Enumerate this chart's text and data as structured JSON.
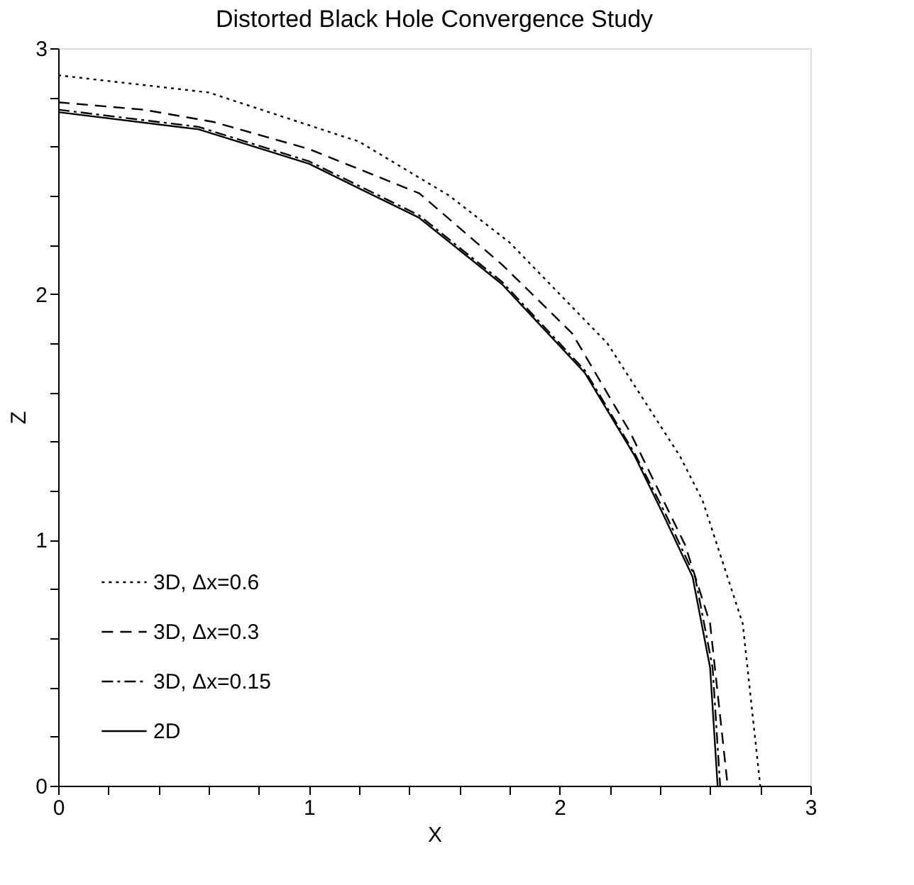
{
  "chart_data": {
    "type": "line",
    "title": "Distorted Black Hole Convergence Study",
    "xlabel": "X",
    "ylabel": "Z",
    "xlim": [
      0,
      3
    ],
    "ylim": [
      0,
      3
    ],
    "xticks": [
      0,
      {
        "value": 0.2,
        "label": null
      },
      {
        "value": 0.4,
        "label": null
      },
      {
        "value": 0.6,
        "label": null
      },
      {
        "value": 0.8,
        "label": null
      },
      1,
      {
        "value": 1.2,
        "label": null
      },
      {
        "value": 1.4,
        "label": null
      },
      {
        "value": 1.6,
        "label": null
      },
      {
        "value": 1.8,
        "label": null
      },
      2,
      {
        "value": 2.2,
        "label": null
      },
      {
        "value": 2.4,
        "label": null
      },
      {
        "value": 2.6,
        "label": null
      },
      {
        "value": 2.8,
        "label": null
      },
      3
    ],
    "yticks": [
      0,
      {
        "value": 0.2,
        "label": null
      },
      {
        "value": 0.4,
        "label": null
      },
      {
        "value": 0.6,
        "label": null
      },
      {
        "value": 0.8,
        "label": null
      },
      1,
      {
        "value": 1.2,
        "label": null
      },
      {
        "value": 1.4,
        "label": null
      },
      {
        "value": 1.6,
        "label": null
      },
      {
        "value": 1.8,
        "label": null
      },
      2,
      {
        "value": 2.2,
        "label": null
      },
      {
        "value": 2.4,
        "label": null
      },
      {
        "value": 2.6,
        "label": null
      },
      {
        "value": 2.8,
        "label": null
      },
      3
    ],
    "grid": false,
    "legend": "bottom left",
    "marker": "none",
    "series": [
      {
        "name": "3D, Δx=0.6",
        "color": "#000000",
        "line_style": "dotted",
        "x": [
          0,
          0.6,
          1.2,
          1.56,
          1.8,
          2.19,
          2.48,
          2.57,
          2.73,
          2.8
        ],
        "values": [
          2.89,
          2.82,
          2.62,
          2.4,
          2.21,
          1.8,
          1.34,
          1.16,
          0.66,
          0
        ]
      },
      {
        "name": "3D, Δx=0.3",
        "color": "#000000",
        "line_style": "dashed",
        "x": [
          0,
          0.34,
          0.62,
          1.0,
          1.44,
          1.77,
          2.05,
          2.28,
          2.5,
          2.6,
          2.67
        ],
        "values": [
          2.78,
          2.75,
          2.7,
          2.59,
          2.41,
          2.12,
          1.84,
          1.44,
          0.98,
          0.66,
          0
        ]
      },
      {
        "name": "3D, Δx=0.15",
        "color": "#000000",
        "line_style": "dashdot",
        "x": [
          0,
          0.56,
          1.0,
          1.44,
          1.77,
          2.1,
          2.3,
          2.42,
          2.54,
          2.61,
          2.64
        ],
        "values": [
          2.75,
          2.68,
          2.54,
          2.32,
          2.05,
          1.69,
          1.35,
          1.11,
          0.85,
          0.48,
          0
        ]
      },
      {
        "name": "2D",
        "color": "#000000",
        "line_style": "solid",
        "x": [
          0,
          0.56,
          1.0,
          1.44,
          1.77,
          2.1,
          2.3,
          2.41,
          2.53,
          2.6,
          2.63
        ],
        "values": [
          2.74,
          2.67,
          2.53,
          2.31,
          2.04,
          1.68,
          1.34,
          1.11,
          0.85,
          0.48,
          0
        ]
      }
    ]
  }
}
